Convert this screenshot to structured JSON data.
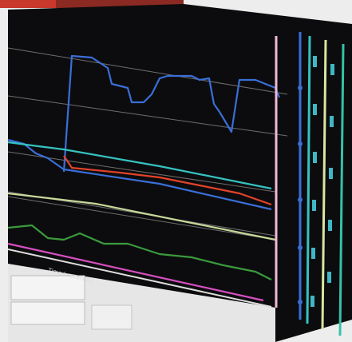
{
  "screen": {
    "x_axis_label": "Time ( seconds )"
  }
}
